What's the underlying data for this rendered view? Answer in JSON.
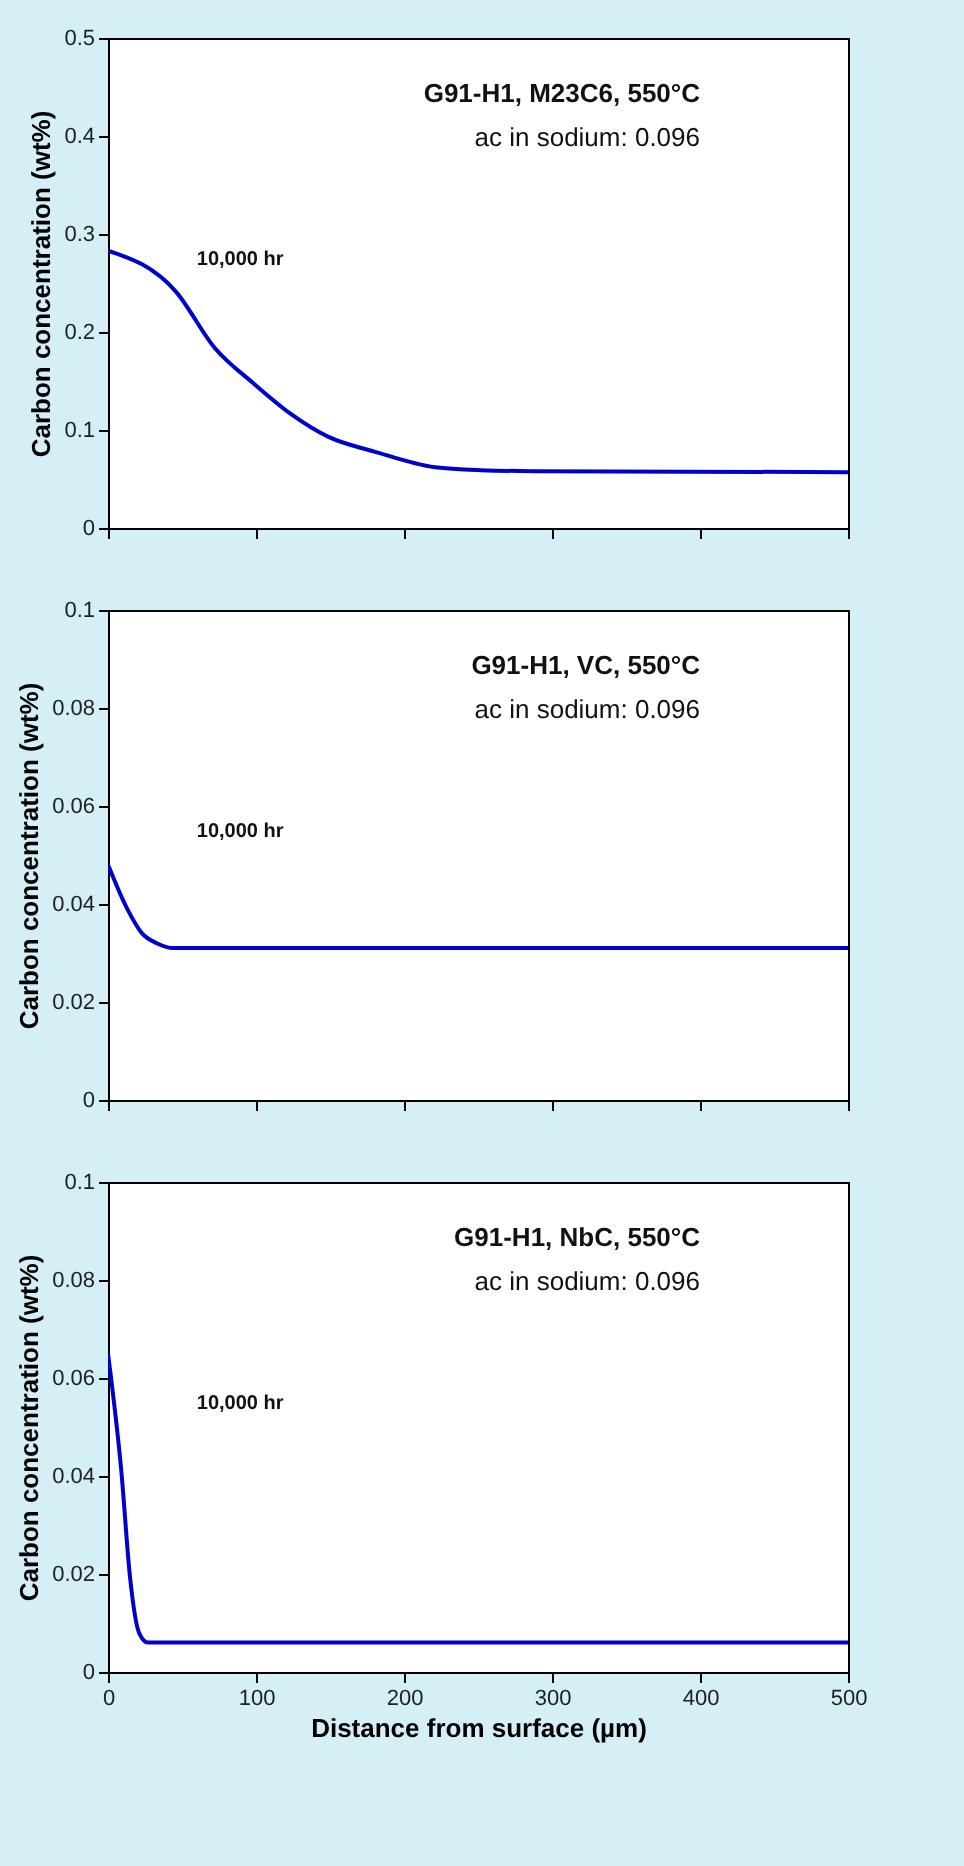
{
  "chart_data": [
    {
      "type": "line",
      "ylabel": "Carbon concentration (wt%)",
      "annotations": [
        "G91-H1, M23C6, 550°C",
        "ac in sodium: 0.096",
        "10,000 hr"
      ],
      "tick_labels": "y",
      "xlim": [
        0,
        500
      ],
      "xticks": [
        0,
        100,
        200,
        300,
        400,
        500
      ],
      "ylim": [
        0,
        0.5
      ],
      "yticks": [
        0,
        0.1,
        0.2,
        0.3,
        0.4,
        0.5
      ],
      "x": [
        0,
        46,
        72,
        98,
        123,
        149,
        180,
        221,
        252,
        288,
        500
      ],
      "series": [
        {
          "color": "#0000cc",
          "values": [
            0.283,
            0.241,
            0.184,
            0.148,
            0.117,
            0.093,
            0.078,
            0.062,
            0.059,
            0.058,
            0.057
          ]
        }
      ]
    },
    {
      "type": "line",
      "ylabel": "Carbon concentration (wt%)",
      "annotations": [
        "G91-H1, VC, 550°C",
        "ac in sodium: 0.096",
        "10,000 hr"
      ],
      "tick_labels": "y",
      "xlim": [
        0,
        500
      ],
      "xticks": [
        0,
        100,
        200,
        300,
        400,
        500
      ],
      "ylim": [
        0,
        0.1
      ],
      "yticks": [
        0,
        0.02,
        0.04,
        0.06,
        0.08,
        0.1
      ],
      "x": [
        0,
        13,
        23,
        33,
        44,
        500
      ],
      "series": [
        {
          "color": "#0000cc",
          "values": [
            0.048,
            0.039,
            0.034,
            0.032,
            0.031,
            0.031
          ]
        }
      ]
    },
    {
      "type": "line",
      "xlabel": "Distance from surface (µm)",
      "ylabel": "Carbon concentration (wt%)",
      "annotations": [
        "G91-H1, NbC, 550°C",
        "ac in sodium: 0.096",
        "10,000 hr"
      ],
      "xlim": [
        0,
        500
      ],
      "xticks": [
        0,
        100,
        200,
        300,
        400,
        500
      ],
      "ylim": [
        0,
        0.1
      ],
      "yticks": [
        0,
        0.02,
        0.04,
        0.06,
        0.08,
        0.1
      ],
      "x": [
        0,
        9,
        15,
        21,
        27,
        500
      ],
      "series": [
        {
          "color": "#0000cc",
          "values": [
            0.065,
            0.041,
            0.019,
            0.008,
            0.006,
            0.006
          ]
        }
      ]
    }
  ]
}
